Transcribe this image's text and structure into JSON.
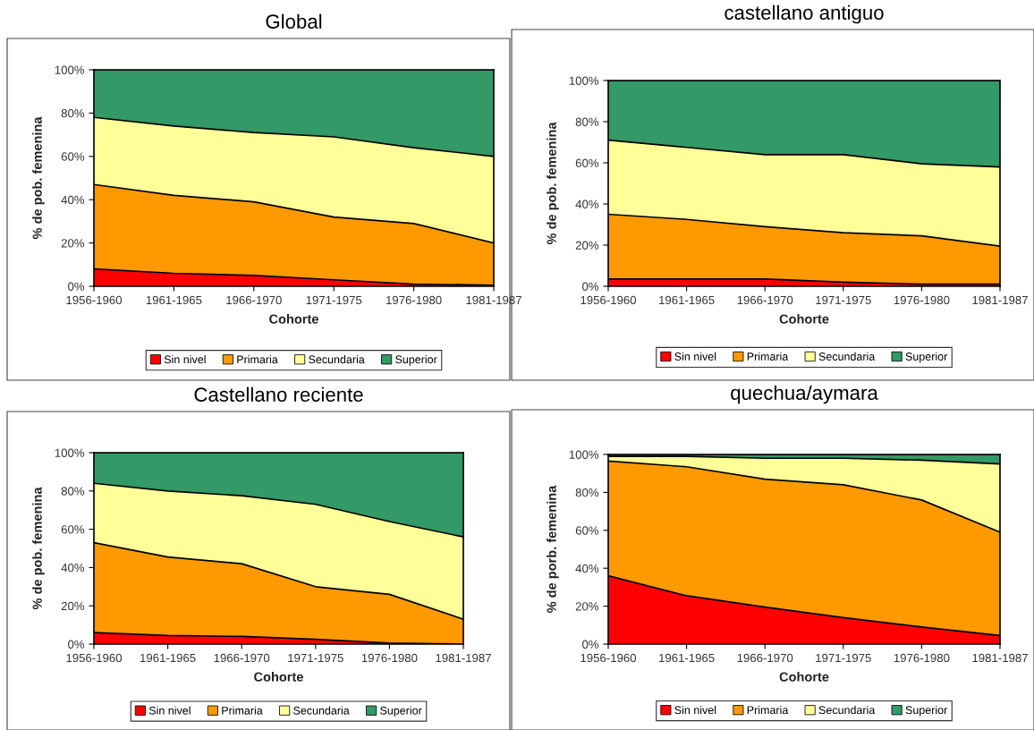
{
  "chart_data": [
    {
      "type": "area",
      "stacked": true,
      "title": "Global",
      "xlabel": "Cohorte",
      "ylabel": "% de pob. femenina",
      "categories": [
        "1956-1960",
        "1961-1965",
        "1966-1970",
        "1971-1975",
        "1976-1980",
        "1981-1987"
      ],
      "ylim": [
        0,
        100
      ],
      "yticks": [
        {
          "value": 0,
          "label": "0%"
        },
        {
          "value": 20,
          "label": "20%"
        },
        {
          "value": 40,
          "label": "40%"
        },
        {
          "value": 60,
          "label": "60%"
        },
        {
          "value": 80,
          "label": "80%"
        },
        {
          "value": 100,
          "label": "100%"
        }
      ],
      "legend": "bottom",
      "series": [
        {
          "name": "Sin nivel",
          "color": "#ff0000",
          "values": [
            8,
            6,
            5,
            3,
            1,
            0.5
          ]
        },
        {
          "name": "Primaria",
          "color": "#ff9900",
          "values": [
            39,
            36,
            34,
            29,
            28,
            19.5
          ]
        },
        {
          "name": "Secundaria",
          "color": "#ffff99",
          "values": [
            31,
            32,
            32,
            37,
            35,
            40
          ]
        },
        {
          "name": "Superior",
          "color": "#339966",
          "values": [
            22,
            26,
            29,
            31,
            36,
            40
          ]
        }
      ]
    },
    {
      "type": "area",
      "stacked": true,
      "title": "castellano antiguo",
      "xlabel": "Cohorte",
      "ylabel": "% de pob. femenina",
      "categories": [
        "1956-1960",
        "1961-1965",
        "1966-1970",
        "1971-1975",
        "1976-1980",
        "1981-1987"
      ],
      "ylim": [
        0,
        100
      ],
      "yticks": [
        {
          "value": 0,
          "label": "0%"
        },
        {
          "value": 20,
          "label": "20%"
        },
        {
          "value": 40,
          "label": "40%"
        },
        {
          "value": 60,
          "label": "60%"
        },
        {
          "value": 80,
          "label": "80%"
        },
        {
          "value": 100,
          "label": "100%"
        }
      ],
      "legend": "bottom",
      "series": [
        {
          "name": "Sin nivel",
          "color": "#ff0000",
          "values": [
            3.5,
            3.5,
            3.5,
            2,
            1,
            1
          ]
        },
        {
          "name": "Primaria",
          "color": "#ff9900",
          "values": [
            31.5,
            29,
            25.5,
            24,
            23.5,
            18.5
          ]
        },
        {
          "name": "Secundaria",
          "color": "#ffff99",
          "values": [
            36,
            35,
            35,
            38,
            35,
            38.5
          ]
        },
        {
          "name": "Superior",
          "color": "#339966",
          "values": [
            29,
            32.5,
            36,
            36,
            40.5,
            42
          ]
        }
      ]
    },
    {
      "type": "area",
      "stacked": true,
      "title": "Castellano reciente",
      "xlabel": "Cohorte",
      "ylabel": "% de pob. femenina",
      "categories": [
        "1956-1960",
        "1961-1965",
        "1966-1970",
        "1971-1975",
        "1976-1980",
        "1981-1987"
      ],
      "ylim": [
        0,
        100
      ],
      "yticks": [
        {
          "value": 0,
          "label": "0%"
        },
        {
          "value": 20,
          "label": "20%"
        },
        {
          "value": 40,
          "label": "40%"
        },
        {
          "value": 60,
          "label": "60%"
        },
        {
          "value": 80,
          "label": "80%"
        },
        {
          "value": 100,
          "label": "100%"
        }
      ],
      "legend": "bottom",
      "series": [
        {
          "name": "Sin nivel",
          "color": "#ff0000",
          "values": [
            6,
            4.5,
            4,
            2.5,
            0.5,
            0
          ]
        },
        {
          "name": "Primaria",
          "color": "#ff9900",
          "values": [
            47,
            41,
            38,
            27.5,
            25.5,
            13
          ]
        },
        {
          "name": "Secundaria",
          "color": "#ffff99",
          "values": [
            31,
            34.5,
            35.5,
            43,
            38,
            43
          ]
        },
        {
          "name": "Superior",
          "color": "#339966",
          "values": [
            16,
            20,
            22.5,
            27,
            36,
            44
          ]
        }
      ]
    },
    {
      "type": "area",
      "stacked": true,
      "title": "quechua/aymara",
      "xlabel": "Cohorte",
      "ylabel": "% de porb. femenina",
      "categories": [
        "1956-1960",
        "1961-1965",
        "1966-1970",
        "1971-1975",
        "1976-1980",
        "1981-1987"
      ],
      "ylim": [
        0,
        100
      ],
      "yticks": [
        {
          "value": 0,
          "label": "0%"
        },
        {
          "value": 20,
          "label": "20%"
        },
        {
          "value": 40,
          "label": "40%"
        },
        {
          "value": 60,
          "label": "60%"
        },
        {
          "value": 80,
          "label": "80%"
        },
        {
          "value": 100,
          "label": "100%"
        }
      ],
      "legend": "bottom",
      "series": [
        {
          "name": "Sin nivel",
          "color": "#ff0000",
          "values": [
            36,
            25.5,
            19.5,
            14,
            9,
            4.5
          ]
        },
        {
          "name": "Primaria",
          "color": "#ff9900",
          "values": [
            60.5,
            68,
            67.5,
            70,
            67,
            54.5
          ]
        },
        {
          "name": "Secundaria",
          "color": "#ffff99",
          "values": [
            2.5,
            5.5,
            11,
            14,
            21,
            36
          ]
        },
        {
          "name": "Superior",
          "color": "#339966",
          "values": [
            1,
            1,
            2,
            2,
            3,
            5
          ]
        }
      ]
    }
  ]
}
